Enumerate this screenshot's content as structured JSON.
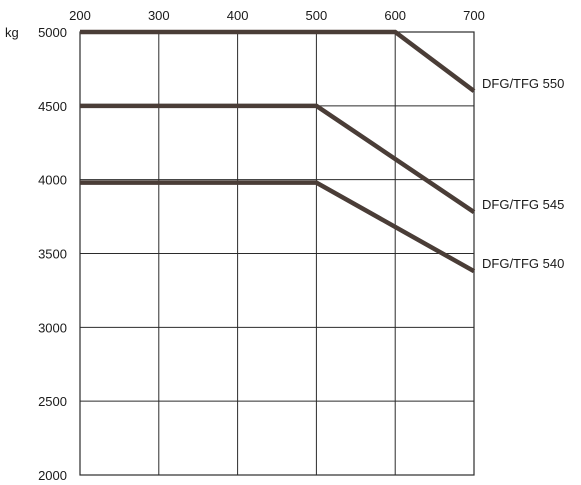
{
  "chart_data": {
    "type": "line",
    "title": "",
    "xlabel": "",
    "ylabel": "",
    "y_unit": "kg",
    "x_ticks": [
      200,
      300,
      400,
      500,
      600,
      700
    ],
    "y_ticks": [
      2000,
      2500,
      3000,
      3500,
      4000,
      4500,
      5000
    ],
    "xlim": [
      200,
      700
    ],
    "ylim": [
      2000,
      5000
    ],
    "grid": true,
    "line_color": "#4a3d37",
    "series": [
      {
        "name": "DFG/TFG 550",
        "x": [
          200,
          600,
          700
        ],
        "y": [
          5000,
          5000,
          4600
        ]
      },
      {
        "name": "DFG/TFG 545",
        "x": [
          200,
          500,
          700
        ],
        "y": [
          4500,
          4500,
          3780
        ]
      },
      {
        "name": "DFG/TFG 540",
        "x": [
          200,
          500,
          700
        ],
        "y": [
          3980,
          3980,
          3380
        ]
      }
    ]
  }
}
